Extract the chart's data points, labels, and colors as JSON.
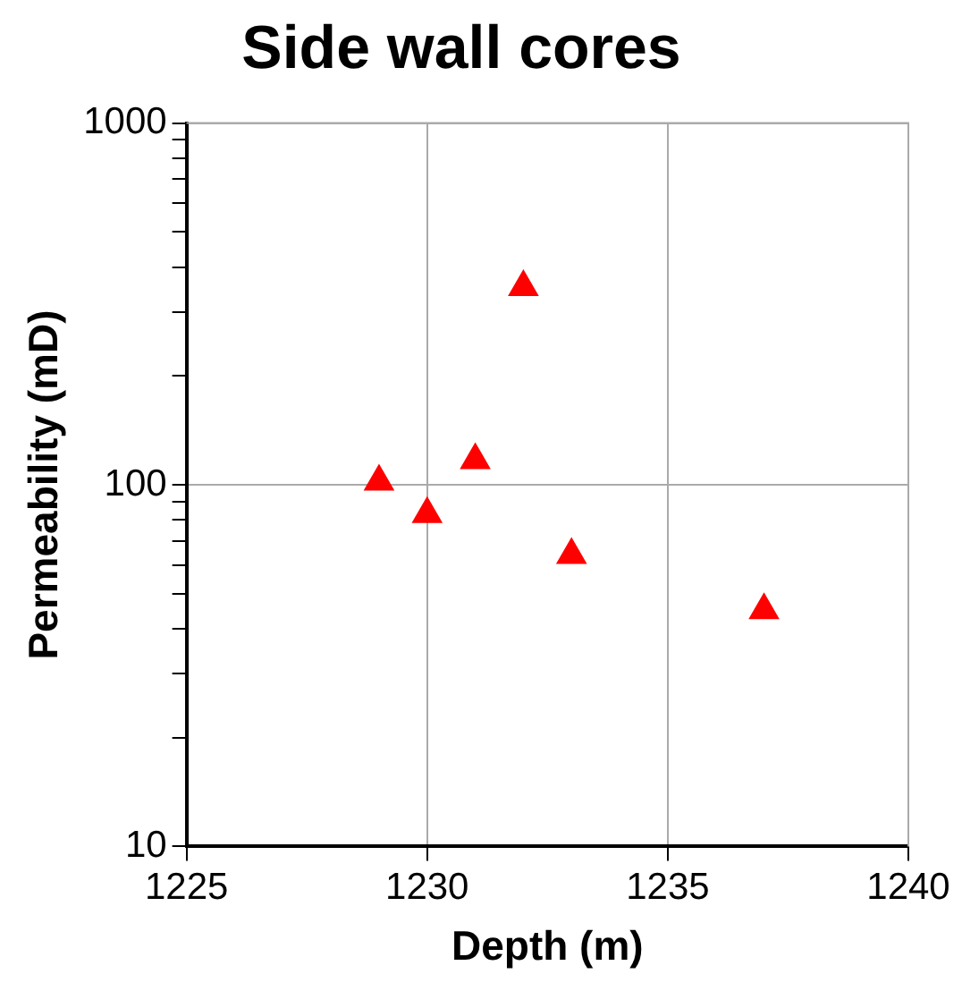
{
  "chart_data": {
    "type": "scatter",
    "title": "Side wall cores",
    "xlabel": "Depth (m)",
    "ylabel": "Permeability (mD)",
    "x": [
      1229,
      1230,
      1231,
      1232,
      1233,
      1237
    ],
    "series": [
      {
        "color": "#ff0000",
        "values": [
          102,
          83,
          117,
          352,
          64,
          45
        ]
      }
    ],
    "xlim": [
      1225,
      1240
    ],
    "xticks": [
      1225,
      1230,
      1235,
      1240
    ],
    "ylim": [
      10,
      1000
    ],
    "yticks": [
      10,
      {
        "value": 20,
        "label": null
      },
      {
        "value": 30,
        "label": null
      },
      {
        "value": 40,
        "label": null
      },
      {
        "value": 50,
        "label": null
      },
      {
        "value": 60,
        "label": null
      },
      {
        "value": 70,
        "label": null
      },
      {
        "value": 80,
        "label": null
      },
      {
        "value": 90,
        "label": null
      },
      100,
      {
        "value": 200,
        "label": null
      },
      {
        "value": 300,
        "label": null
      },
      {
        "value": 400,
        "label": null
      },
      {
        "value": 500,
        "label": null
      },
      {
        "value": 600,
        "label": null
      },
      {
        "value": 700,
        "label": null
      },
      {
        "value": 800,
        "label": null
      },
      {
        "value": 900,
        "label": null
      },
      1000
    ],
    "log": "y",
    "grid": true,
    "marker": "triangle",
    "legend": false
  }
}
